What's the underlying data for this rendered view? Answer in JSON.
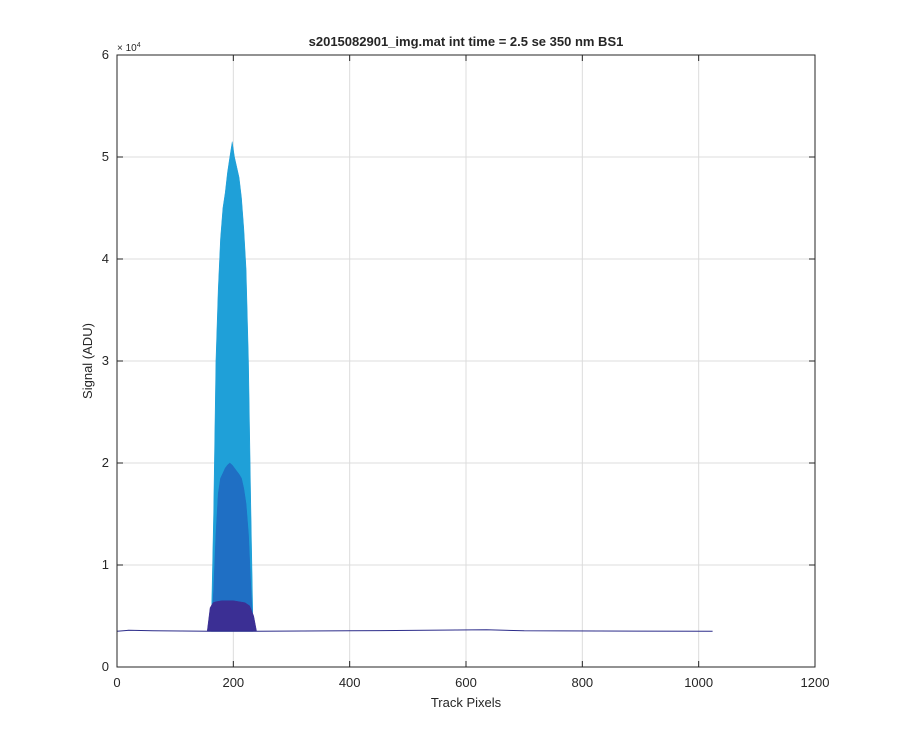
{
  "chart_data": {
    "type": "area",
    "title": "s2015082901_img.mat int time = 2.5 se  350 nm BS1",
    "xlabel": "Track Pixels",
    "ylabel": "Signal (ADU)",
    "xlim": [
      0,
      1200
    ],
    "ylim": [
      0,
      60000
    ],
    "xticks": [
      0,
      200,
      400,
      600,
      800,
      1000,
      1200
    ],
    "yticks": [
      0,
      1,
      2,
      3,
      4,
      5,
      6
    ],
    "y_exponent_label": "× 10",
    "y_exponent": "4",
    "grid": true,
    "colors": {
      "high": "#1fa0d8",
      "mid": "#1f6fc4",
      "low": "#3b2f94",
      "baseline": "#2c2c8a"
    },
    "series": [
      {
        "color": "#1fa0d8",
        "x": [
          162,
          166,
          170,
          174,
          178,
          182,
          186,
          190,
          194,
          198,
          202,
          206,
          210,
          214,
          218,
          222,
          226,
          230,
          234
        ],
        "y": [
          3600,
          15000,
          30000,
          37000,
          42000,
          45000,
          46500,
          48500,
          50000,
          51500,
          50000,
          49000,
          48000,
          46000,
          43000,
          39000,
          30000,
          16000,
          3600
        ]
      },
      {
        "color": "#1f6fc4",
        "x": [
          162,
          166,
          170,
          174,
          178,
          182,
          186,
          190,
          194,
          198,
          202,
          206,
          210,
          214,
          218,
          222,
          226,
          230,
          234
        ],
        "y": [
          3600,
          7500,
          13000,
          17000,
          18500,
          19000,
          19500,
          19800,
          20000,
          19800,
          19500,
          19200,
          18900,
          18500,
          17500,
          16000,
          13000,
          8000,
          3600
        ]
      },
      {
        "color": "#3b2f94",
        "x": [
          155,
          160,
          165,
          170,
          180,
          190,
          200,
          210,
          220,
          228,
          235,
          240
        ],
        "y": [
          3500,
          5800,
          6300,
          6400,
          6500,
          6500,
          6500,
          6400,
          6300,
          6000,
          5000,
          3500
        ]
      },
      {
        "color": "#2c2c8a",
        "x": [
          0,
          20,
          62,
          160,
          240,
          400,
          635,
          700,
          1024
        ],
        "y": [
          3500,
          3600,
          3550,
          3500,
          3500,
          3550,
          3650,
          3550,
          3500
        ]
      }
    ]
  }
}
